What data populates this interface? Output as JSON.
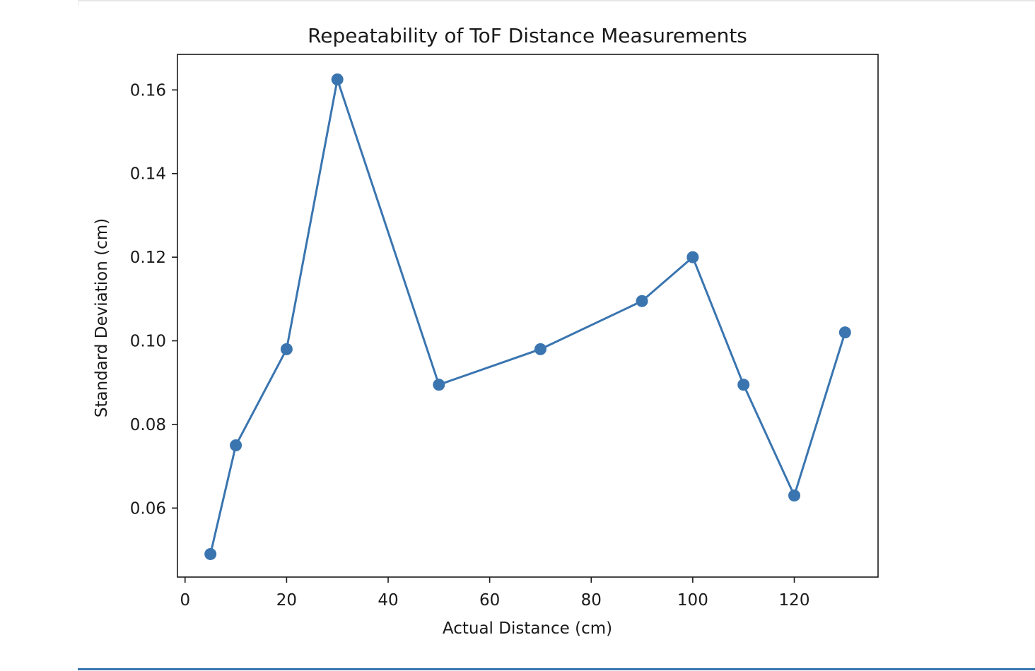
{
  "colors": {
    "series": "#3a75b0",
    "axes": "#1a1a1a",
    "background": "#ffffff",
    "bottom_rule": "#3a75b0"
  },
  "chart_data": {
    "type": "line",
    "title": "Repeatability of ToF Distance Measurements",
    "xlabel": "Actual Distance (cm)",
    "ylabel": "Standard Deviation (cm)",
    "xlim": [
      -1.5,
      136.5
    ],
    "ylim": [
      0.0435,
      0.1685
    ],
    "xticks": [
      0,
      20,
      40,
      60,
      80,
      100,
      120
    ],
    "xtick_labels": [
      "0",
      "20",
      "40",
      "60",
      "80",
      "100",
      "120"
    ],
    "yticks": [
      0.06,
      0.08,
      0.1,
      0.12,
      0.14,
      0.16
    ],
    "ytick_labels": [
      "0.06",
      "0.08",
      "0.10",
      "0.12",
      "0.14",
      "0.16"
    ],
    "grid": false,
    "legend": "none",
    "markers": "circle",
    "series": [
      {
        "x": [
          5,
          10,
          20,
          30,
          50,
          70,
          90,
          100,
          110,
          120,
          130
        ],
        "y": [
          0.049,
          0.075,
          0.098,
          0.1625,
          0.0895,
          0.098,
          0.1095,
          0.12,
          0.0895,
          0.063,
          0.102
        ]
      }
    ]
  }
}
